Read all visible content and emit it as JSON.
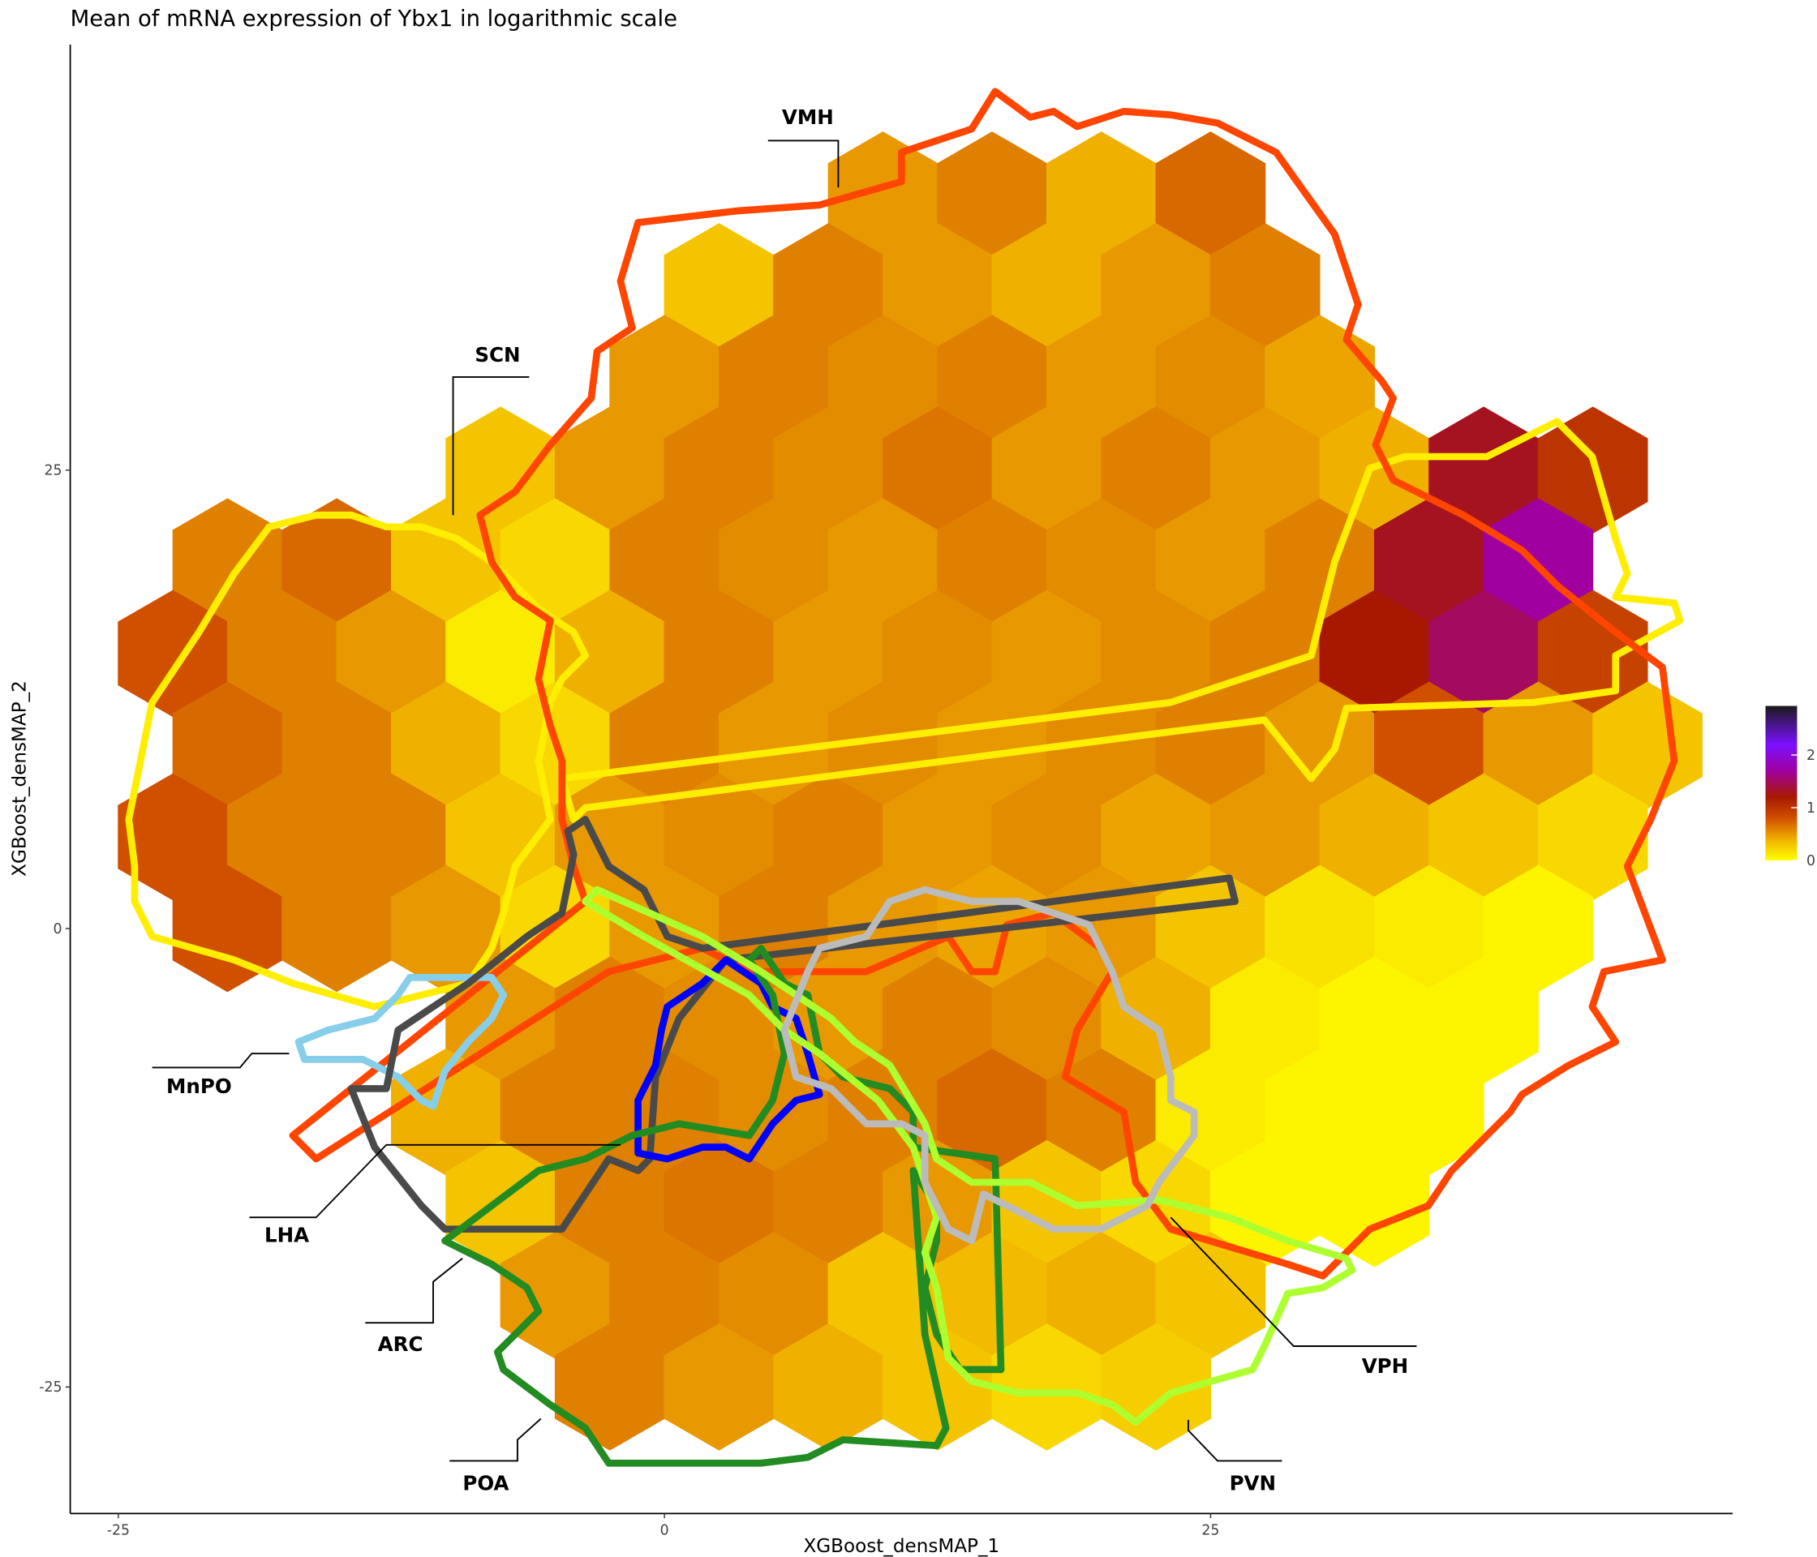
{
  "chart_data": {
    "type": "hexbin",
    "title": "Mean of mRNA expression of Ybx1 in logarithmic scale",
    "x_label": "XGBoost_densMAP_1",
    "y_label": "XGBoost_densMAP_2",
    "xlim": [
      -27.2,
      48.9
    ],
    "ylim": [
      -31.9,
      48.2
    ],
    "xticks": [
      -25,
      0,
      25
    ],
    "yticks": [
      -25,
      0,
      25
    ],
    "clim": [
      0,
      2.93
    ],
    "colorbar_ticks": [
      0,
      1,
      2
    ],
    "colorscale": [
      [
        0,
        "#ffff00"
      ],
      [
        0.4,
        "#f0b000"
      ],
      [
        0.8,
        "#d05000"
      ],
      [
        1.2,
        "#a81800"
      ],
      [
        1.7,
        "#a000a0"
      ],
      [
        2.2,
        "#7a10ff"
      ],
      [
        2.93,
        "#1a1a1a"
      ]
    ],
    "annotations": [
      "VMH",
      "SCN",
      "MnPO",
      "LHA",
      "ARC",
      "POA",
      "PVN",
      "VPH"
    ],
    "x": [
      10,
      15,
      20,
      25,
      2.5,
      7.5,
      12.5,
      17.5,
      22.5,
      27.5,
      0,
      5,
      10,
      15,
      20,
      25,
      30,
      -7.5,
      -2.5,
      2.5,
      7.5,
      12.5,
      17.5,
      22.5,
      27.5,
      32.5,
      37.5,
      42.5,
      -20,
      -15,
      -10,
      -5,
      0,
      5,
      10,
      15,
      20,
      25,
      30,
      35,
      40,
      -22.5,
      -17.5,
      -12.5,
      -7.5,
      -2.5,
      2.5,
      7.5,
      12.5,
      17.5,
      22.5,
      27.5,
      32.5,
      37.5,
      42.5,
      -20,
      -15,
      -10,
      -5,
      0,
      5,
      10,
      15,
      20,
      25,
      30,
      35,
      40,
      45,
      -22.5,
      -17.5,
      -12.5,
      -7.5,
      -2.5,
      2.5,
      7.5,
      12.5,
      17.5,
      22.5,
      27.5,
      32.5,
      37.5,
      42.5,
      -20,
      -15,
      -10,
      -5,
      0,
      5,
      10,
      15,
      20,
      25,
      30,
      35,
      40,
      -7.5,
      -2.5,
      2.5,
      7.5,
      12.5,
      17.5,
      22.5,
      27.5,
      32.5,
      37.5,
      -10,
      -5,
      0,
      5,
      10,
      15,
      20,
      25,
      30,
      35,
      -7.5,
      -2.5,
      2.5,
      7.5,
      12.5,
      17.5,
      22.5,
      27.5,
      32.5,
      -5,
      0,
      5,
      10,
      15,
      20,
      25,
      -2.5,
      2.5,
      7.5,
      12.5,
      17.5,
      22.5
    ],
    "y": [
      40,
      40,
      40,
      40,
      35,
      35,
      35,
      35,
      35,
      35,
      30,
      30,
      30,
      30,
      30,
      30,
      30,
      25,
      25,
      25,
      25,
      25,
      25,
      25,
      25,
      25,
      25,
      25,
      20,
      20,
      20,
      20,
      20,
      20,
      20,
      20,
      20,
      20,
      20,
      20,
      20,
      15,
      15,
      15,
      15,
      15,
      15,
      15,
      15,
      15,
      15,
      15,
      15,
      15,
      15,
      10,
      10,
      10,
      10,
      10,
      10,
      10,
      10,
      10,
      10,
      10,
      10,
      10,
      10,
      5,
      5,
      5,
      5,
      5,
      5,
      5,
      5,
      5,
      5,
      5,
      5,
      5,
      5,
      0,
      0,
      0,
      0,
      0,
      0,
      0,
      0,
      0,
      0,
      0,
      0,
      0,
      -5,
      -5,
      -5,
      -5,
      -5,
      -5,
      -5,
      -5,
      -5,
      -5,
      -10,
      -10,
      -10,
      -10,
      -10,
      -10,
      -10,
      -10,
      -10,
      -10,
      -15,
      -15,
      -15,
      -15,
      -15,
      -15,
      -15,
      -15,
      -15,
      -20,
      -20,
      -20,
      -20,
      -20,
      -20,
      -20,
      -25,
      -25,
      -25,
      -25,
      -25,
      -25
    ],
    "values": [
      0.5,
      0.6,
      0.4,
      0.7,
      0.3,
      0.6,
      0.5,
      0.4,
      0.5,
      0.6,
      0.5,
      0.6,
      0.55,
      0.6,
      0.5,
      0.55,
      0.45,
      0.3,
      0.5,
      0.6,
      0.55,
      0.65,
      0.5,
      0.6,
      0.5,
      0.4,
      1.3,
      1.0,
      0.6,
      0.7,
      0.3,
      0.2,
      0.6,
      0.55,
      0.5,
      0.6,
      0.55,
      0.5,
      0.6,
      1.3,
      1.7,
      0.8,
      0.6,
      0.5,
      0.1,
      0.4,
      0.6,
      0.5,
      0.55,
      0.5,
      0.55,
      0.6,
      1.2,
      1.5,
      0.9,
      0.7,
      0.6,
      0.4,
      0.2,
      0.6,
      0.5,
      0.55,
      0.5,
      0.55,
      0.6,
      0.5,
      0.8,
      0.5,
      0.3,
      0.8,
      0.6,
      0.6,
      0.3,
      0.5,
      0.55,
      0.6,
      0.5,
      0.55,
      0.45,
      0.5,
      0.4,
      0.3,
      0.2,
      0.8,
      0.6,
      0.5,
      0.2,
      0.5,
      0.6,
      0.5,
      0.45,
      0.5,
      0.3,
      0.15,
      0.1,
      0.05,
      0.5,
      0.6,
      0.55,
      0.5,
      0.6,
      0.55,
      0.4,
      0.1,
      0.05,
      0.05,
      0.4,
      0.6,
      0.6,
      0.55,
      0.6,
      0.7,
      0.6,
      0.1,
      0.05,
      0.05,
      0.3,
      0.6,
      0.65,
      0.6,
      0.5,
      0.3,
      0.2,
      0.05,
      0.05,
      0.5,
      0.6,
      0.55,
      0.3,
      0.35,
      0.4,
      0.3,
      0.6,
      0.5,
      0.4,
      0.3,
      0.2,
      0.25
    ]
  }
}
